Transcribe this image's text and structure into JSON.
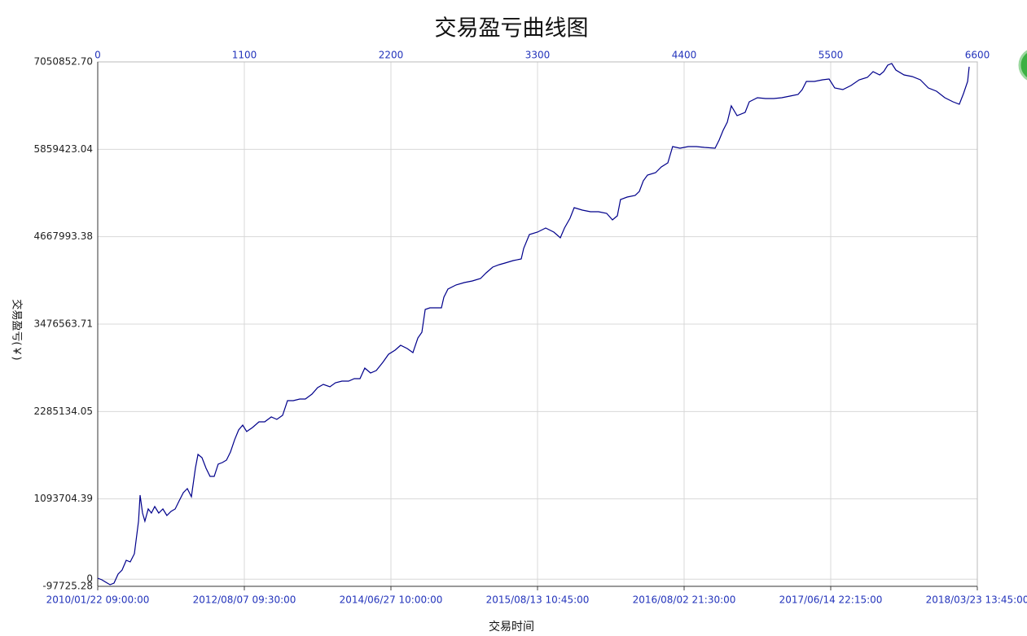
{
  "chart_data": {
    "type": "line",
    "title": "交易盈亏曲线图",
    "x_label": "交易时间",
    "y_label": "交易盈亏(￥)",
    "color": "#00008b",
    "grid": true,
    "xlim": [
      0,
      6600
    ],
    "xticks": [
      0,
      1100,
      2200,
      3300,
      4400,
      5500,
      6600
    ],
    "x_date_labels": [
      "2010/01/22 09:00:00",
      "2012/08/07 09:30:00",
      "2014/06/27 10:00:00",
      "2015/08/13 10:45:00",
      "2016/08/02 21:30:00",
      "2017/06/14 22:15:00",
      "2018/03/23 13:45:00"
    ],
    "ylim": [
      -97725.28,
      7050852.7
    ],
    "yticks": [
      -97725.28,
      0,
      1093704.39,
      2285134.05,
      3476563.71,
      4667993.38,
      5859423.04,
      {
        "value": 7050852.7,
        "label": "7050852.70"
      }
    ],
    "x": [
      0,
      31,
      61,
      92,
      122,
      153,
      183,
      214,
      244,
      275,
      306,
      318,
      336,
      354,
      379,
      403,
      428,
      458,
      489,
      519,
      550,
      581,
      611,
      642,
      672,
      703,
      733,
      752,
      782,
      813,
      843,
      874,
      904,
      935,
      966,
      996,
      1027,
      1057,
      1088,
      1118,
      1161,
      1210,
      1253,
      1302,
      1344,
      1387,
      1424,
      1467,
      1516,
      1558,
      1607,
      1650,
      1693,
      1742,
      1784,
      1833,
      1882,
      1925,
      1968,
      2004,
      2047,
      2090,
      2139,
      2182,
      2231,
      2273,
      2322,
      2365,
      2402,
      2432,
      2457,
      2493,
      2536,
      2579,
      2597,
      2628,
      2689,
      2750,
      2811,
      2872,
      2915,
      2964,
      3013,
      3056,
      3117,
      3178,
      3196,
      3239,
      3300,
      3361,
      3422,
      3471,
      3502,
      3544,
      3575,
      3636,
      3697,
      3758,
      3819,
      3862,
      3899,
      3923,
      3972,
      4033,
      4064,
      4094,
      4125,
      4186,
      4229,
      4278,
      4314,
      4369,
      4431,
      4492,
      4553,
      4632,
      4663,
      4693,
      4724,
      4754,
      4797,
      4858,
      4889,
      4950,
      5011,
      5072,
      5133,
      5194,
      5255,
      5286,
      5317,
      5378,
      5439,
      5488,
      5530,
      5591,
      5652,
      5714,
      5775,
      5818,
      5867,
      5897,
      5928,
      5958,
      5989,
      6050,
      6111,
      6172,
      6233,
      6294,
      6356,
      6417,
      6465,
      6496,
      6527,
      6539
    ],
    "values": [
      13000,
      -9000,
      -42000,
      -75000,
      -53000,
      69000,
      124000,
      257000,
      235000,
      346000,
      790000,
      1146000,
      901000,
      790000,
      957000,
      901000,
      990000,
      901000,
      957000,
      868000,
      924000,
      957000,
      1068000,
      1179000,
      1234000,
      1123000,
      1512000,
      1701000,
      1656000,
      1512000,
      1401000,
      1401000,
      1567000,
      1590000,
      1623000,
      1734000,
      1901000,
      2034000,
      2100000,
      2012000,
      2067000,
      2145000,
      2145000,
      2211000,
      2178000,
      2233000,
      2433000,
      2433000,
      2455000,
      2455000,
      2522000,
      2611000,
      2655000,
      2622000,
      2677000,
      2699000,
      2699000,
      2733000,
      2733000,
      2877000,
      2811000,
      2844000,
      2955000,
      3066000,
      3121000,
      3188000,
      3144000,
      3088000,
      3288000,
      3366000,
      3676000,
      3699000,
      3699000,
      3699000,
      3843000,
      3954000,
      4010000,
      4043000,
      4065000,
      4098000,
      4176000,
      4254000,
      4287000,
      4309000,
      4342000,
      4365000,
      4509000,
      4698000,
      4731000,
      4786000,
      4731000,
      4653000,
      4786000,
      4920000,
      5064000,
      5031000,
      5008000,
      5008000,
      4986000,
      4897000,
      4953000,
      5175000,
      5208000,
      5231000,
      5286000,
      5430000,
      5508000,
      5541000,
      5619000,
      5674000,
      5896000,
      5874000,
      5896000,
      5896000,
      5885000,
      5874000,
      5985000,
      6118000,
      6229000,
      6451000,
      6318000,
      6363000,
      6507000,
      6562000,
      6551000,
      6551000,
      6562000,
      6585000,
      6607000,
      6673000,
      6784000,
      6784000,
      6807000,
      6818000,
      6696000,
      6673000,
      6729000,
      6807000,
      6840000,
      6918000,
      6873000,
      6918000,
      7006000,
      7029000,
      6940000,
      6873000,
      6851000,
      6807000,
      6696000,
      6651000,
      6562000,
      6507000,
      6474000,
      6618000,
      6784000,
      6984000
    ]
  }
}
